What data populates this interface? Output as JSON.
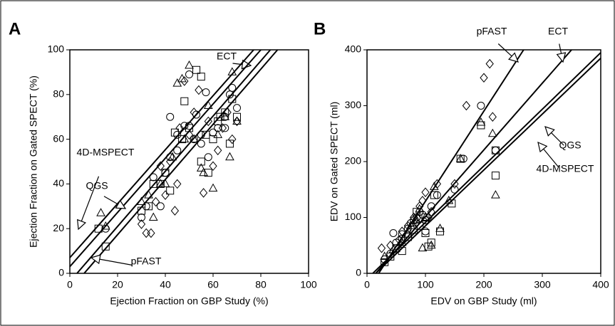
{
  "chart_data": [
    {
      "type": "scatter",
      "panel": "A",
      "xlabel": "Ejection Fraction on GBP Study (%)",
      "ylabel": "Ejection Fraction on Gated SPECT (%)",
      "xlim": [
        0,
        100
      ],
      "ylim": [
        0,
        100
      ],
      "xticks": [
        0,
        20,
        40,
        60,
        80,
        100
      ],
      "yticks": [
        0,
        20,
        40,
        60,
        80,
        100
      ],
      "series": [
        {
          "marker": "circle",
          "x": [
            42,
            45,
            48,
            50,
            52,
            55,
            57,
            58,
            60,
            62,
            65,
            67,
            68,
            70,
            35,
            32,
            30,
            38,
            42,
            45,
            50,
            53,
            55,
            65,
            15,
            40
          ],
          "values": [
            70,
            62,
            66,
            89,
            60,
            58,
            81,
            52,
            63,
            65,
            70,
            80,
            83,
            74,
            43,
            30,
            25,
            30,
            52,
            55,
            66,
            71,
            62,
            65,
            20,
            45
          ]
        },
        {
          "marker": "square",
          "x": [
            12,
            15,
            30,
            33,
            35,
            38,
            40,
            42,
            44,
            47,
            50,
            53,
            55,
            57,
            58,
            60,
            62,
            65,
            67,
            68,
            70,
            48,
            55,
            63
          ],
          "values": [
            20,
            12,
            28,
            30,
            40,
            40,
            45,
            37,
            63,
            60,
            65,
            91,
            88,
            62,
            45,
            60,
            68,
            72,
            58,
            78,
            70,
            77,
            50,
            70
          ]
        },
        {
          "marker": "triangle",
          "x": [
            13,
            15,
            30,
            35,
            38,
            45,
            47,
            50,
            52,
            55,
            56,
            58,
            60,
            62,
            65,
            67,
            68,
            70,
            48,
            43,
            40,
            33
          ],
          "values": [
            27,
            21,
            32,
            25,
            40,
            85,
            87,
            93,
            60,
            47,
            45,
            75,
            38,
            62,
            70,
            52,
            90,
            68,
            60,
            52,
            40,
            35
          ]
        },
        {
          "marker": "diamond",
          "x": [
            32,
            34,
            36,
            38,
            40,
            42,
            44,
            46,
            48,
            50,
            52,
            54,
            56,
            58,
            60,
            62,
            64,
            66,
            68,
            70,
            45,
            30
          ],
          "values": [
            18,
            18,
            32,
            48,
            35,
            50,
            28,
            65,
            86,
            62,
            72,
            82,
            36,
            68,
            48,
            55,
            65,
            72,
            60,
            68,
            40,
            22
          ]
        }
      ],
      "fits": [
        {
          "label": "ECT",
          "x": [
            3,
            84
          ],
          "y": [
            0,
            100
          ]
        },
        {
          "label": "4D-MSPECT",
          "x": [
            0,
            77
          ],
          "y": [
            7,
            100
          ]
        },
        {
          "label": "QGS",
          "x": [
            0,
            80
          ],
          "y": [
            3,
            100
          ]
        },
        {
          "label": "pFAST",
          "x": [
            6,
            87
          ],
          "y": [
            0,
            100
          ]
        }
      ]
    },
    {
      "type": "scatter",
      "panel": "B",
      "xlabel": "EDV on GBP Study (ml)",
      "ylabel": "EDV on Gated SPECT (ml)",
      "xlim": [
        0,
        400
      ],
      "ylim": [
        0,
        400
      ],
      "xticks": [
        0,
        100,
        200,
        300,
        400
      ],
      "yticks": [
        0,
        100,
        200,
        300,
        400
      ],
      "series": [
        {
          "marker": "circle",
          "x": [
            30,
            45,
            50,
            60,
            70,
            75,
            80,
            85,
            90,
            95,
            100,
            110,
            120,
            150,
            165,
            195,
            220,
            100,
            60,
            40
          ],
          "values": [
            25,
            72,
            55,
            70,
            80,
            90,
            95,
            100,
            110,
            105,
            95,
            120,
            140,
            150,
            205,
            300,
            220,
            75,
            62,
            35
          ]
        },
        {
          "marker": "square",
          "x": [
            30,
            50,
            60,
            70,
            80,
            90,
            100,
            100,
            105,
            110,
            115,
            125,
            145,
            160,
            195,
            220,
            220,
            85,
            40
          ],
          "values": [
            20,
            45,
            40,
            65,
            78,
            85,
            100,
            72,
            48,
            55,
            140,
            75,
            125,
            205,
            265,
            220,
            175,
            110,
            30
          ]
        },
        {
          "marker": "triangle",
          "x": [
            30,
            45,
            60,
            75,
            85,
            95,
            100,
            110,
            115,
            125,
            140,
            160,
            195,
            215,
            220,
            70,
            90
          ],
          "values": [
            30,
            42,
            55,
            85,
            95,
            45,
            100,
            50,
            155,
            80,
            130,
            205,
            270,
            250,
            140,
            70,
            115
          ]
        },
        {
          "marker": "diamond",
          "x": [
            25,
            40,
            55,
            70,
            80,
            90,
            95,
            100,
            110,
            120,
            150,
            170,
            200,
            210,
            215,
            105,
            60,
            85
          ],
          "values": [
            45,
            50,
            60,
            85,
            100,
            120,
            130,
            145,
            110,
            160,
            160,
            300,
            350,
            375,
            280,
            100,
            75,
            90
          ]
        }
      ],
      "fits": [
        {
          "label": "pFAST",
          "x": [
            20,
            268
          ],
          "y": [
            0,
            400
          ]
        },
        {
          "label": "ECT",
          "x": [
            15,
            350
          ],
          "y": [
            0,
            400
          ]
        },
        {
          "label": "QGS",
          "x": [
            10,
            400
          ],
          "y": [
            0,
            395
          ]
        },
        {
          "label": "4D-MSPECT",
          "x": [
            15,
            400
          ],
          "y": [
            0,
            385
          ]
        }
      ]
    }
  ]
}
